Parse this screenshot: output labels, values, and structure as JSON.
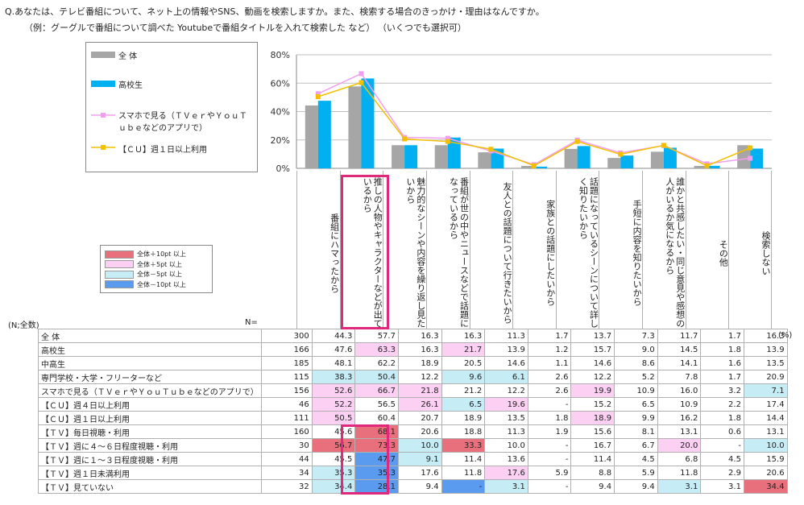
{
  "question_line1": "Q.あなたは、テレビ番組について、ネット上の情報やSNS、動画を検索しますか。また、検索する場合のきっかけ・理由はなんですか。",
  "question_line2": "（例：グーグルで番組について調べた Youtubeで番組タイトルを入れて検索した など） （いくつでも選択可）",
  "legend": {
    "all": "全 体",
    "hs": "高校生",
    "smartphone": "スマホで見る（ＴＶｅｒやＹｏｕＴｕｂｅなどのアプリで）",
    "cu": "【ＣＵ】週１日以上利用"
  },
  "highlight_legend": [
    {
      "label": "全体＋10pt 以上",
      "color": "#e8707c"
    },
    {
      "label": "全体＋5pt 以上",
      "color": "#fbd0f3"
    },
    {
      "label": "全体－5pt 以上",
      "color": "#c6ecf6"
    },
    {
      "label": "全体－10pt 以上",
      "color": "#5b9bef"
    }
  ],
  "sample_label": "(N;全数)",
  "n_header": "N=",
  "unit": "(%)",
  "colors": {
    "all": "#a6a6a6",
    "hs": "#00b0f0",
    "smartphone": "#f29ef0",
    "cu": "#f3c000",
    "frame": "#e0287c"
  },
  "chart_data": {
    "type": "bar",
    "ylim": [
      0,
      80
    ],
    "yticks": [
      "0%",
      "20%",
      "40%",
      "60%",
      "80%"
    ],
    "categories": [
      "番組にハマったから",
      "推しの人物やキャラクターなどが出ているから",
      "魅力的なシーンや内容を繰り返し見たいから",
      "番組が世の中やニュースなどで話題になっているから",
      "友人との話題について行きたいから",
      "家族との話題にしたいから",
      "話題になっているシーンについて詳しく知りたいから",
      "手短に内容を知りたいから",
      "誰かと共感したい・同じ意見や感想の人がいるか気になるから",
      "その他",
      "検索しない"
    ],
    "series": [
      {
        "name": "全 体",
        "type": "bar",
        "values": [
          44.3,
          57.7,
          16.3,
          16.3,
          11.3,
          1.7,
          13.7,
          7.3,
          11.7,
          1.7,
          16.3
        ]
      },
      {
        "name": "高校生",
        "type": "bar",
        "values": [
          47.6,
          63.3,
          16.3,
          21.7,
          13.9,
          1.2,
          15.7,
          9.0,
          14.5,
          1.8,
          13.9
        ]
      },
      {
        "name": "スマホで見る（ＴＶｅｒやＹｏｕＴｕｂｅなどのアプリで）",
        "type": "line",
        "values": [
          52.6,
          66.7,
          21.8,
          21.2,
          12.2,
          2.6,
          19.9,
          10.9,
          16.0,
          3.2,
          7.1
        ]
      },
      {
        "name": "【ＣＵ】週１日以上利用",
        "type": "line",
        "values": [
          50.5,
          60.4,
          20.7,
          18.9,
          13.5,
          1.8,
          18.9,
          9.9,
          16.2,
          1.8,
          14.4
        ]
      }
    ]
  },
  "table": {
    "rows": [
      {
        "label": "全 体",
        "n": "300",
        "values": [
          "44.3",
          "57.7",
          "16.3",
          "16.3",
          "11.3",
          "1.7",
          "13.7",
          "7.3",
          "11.7",
          "1.7",
          "16.3"
        ],
        "hl": [
          "",
          "",
          "",
          "",
          "",
          "",
          "",
          "",
          "",
          "",
          ""
        ]
      },
      {
        "label": "高校生",
        "n": "166",
        "values": [
          "47.6",
          "63.3",
          "16.3",
          "21.7",
          "13.9",
          "1.2",
          "15.7",
          "9.0",
          "14.5",
          "1.8",
          "13.9"
        ],
        "hl": [
          "",
          "p5",
          "",
          "p5",
          "",
          "",
          "",
          "",
          "",
          "",
          ""
        ]
      },
      {
        "label": "中高生",
        "n": "185",
        "values": [
          "48.1",
          "62.2",
          "18.9",
          "20.5",
          "14.6",
          "1.1",
          "14.6",
          "8.6",
          "14.1",
          "1.6",
          "13.5"
        ],
        "hl": [
          "",
          "",
          "",
          "",
          "",
          "",
          "",
          "",
          "",
          "",
          ""
        ]
      },
      {
        "label": "専門学校・大学・フリーターなど",
        "n": "115",
        "values": [
          "38.3",
          "50.4",
          "12.2",
          "9.6",
          "6.1",
          "2.6",
          "12.2",
          "5.2",
          "7.8",
          "1.7",
          "20.9"
        ],
        "hl": [
          "m5",
          "m5",
          "",
          "m5",
          "m5",
          "",
          "",
          "",
          "",
          "",
          ""
        ]
      },
      {
        "label": "スマホで見る（ＴＶｅｒやＹｏｕＴｕｂｅなどのアプリで）",
        "n": "156",
        "values": [
          "52.6",
          "66.7",
          "21.8",
          "21.2",
          "12.2",
          "2.6",
          "19.9",
          "10.9",
          "16.0",
          "3.2",
          "7.1"
        ],
        "hl": [
          "p5",
          "p5",
          "p5",
          "",
          "",
          "",
          "p5",
          "",
          "",
          "",
          "m5"
        ]
      },
      {
        "label": "【ＣＵ】週４日以上利用",
        "n": "46",
        "values": [
          "52.2",
          "56.5",
          "26.1",
          "6.5",
          "19.6",
          "-",
          "15.2",
          "6.5",
          "10.9",
          "2.2",
          "17.4"
        ],
        "hl": [
          "p5",
          "",
          "p5",
          "m5",
          "p5",
          "",
          "",
          "",
          "",
          "",
          ""
        ]
      },
      {
        "label": "【ＣＵ】週１日以上利用",
        "n": "111",
        "values": [
          "50.5",
          "60.4",
          "20.7",
          "18.9",
          "13.5",
          "1.8",
          "18.9",
          "9.9",
          "16.2",
          "1.8",
          "14.4"
        ],
        "hl": [
          "p5",
          "",
          "",
          "",
          "",
          "",
          "p5",
          "",
          "",
          "",
          ""
        ]
      },
      {
        "label": "【ＴＶ】毎日視聴・利用",
        "n": "160",
        "values": [
          "45.6",
          "68.1",
          "20.6",
          "18.8",
          "11.3",
          "1.9",
          "15.6",
          "8.1",
          "13.1",
          "0.6",
          "13.1"
        ],
        "hl": [
          "",
          "p10",
          "",
          "",
          "",
          "",
          "",
          "",
          "",
          "",
          ""
        ]
      },
      {
        "label": "【ＴＶ】週に４～６日程度視聴・利用",
        "n": "30",
        "values": [
          "56.7",
          "73.3",
          "10.0",
          "33.3",
          "10.0",
          "-",
          "16.7",
          "6.7",
          "20.0",
          "-",
          "10.0"
        ],
        "hl": [
          "p10",
          "p10",
          "m5",
          "p10",
          "",
          "",
          "",
          "",
          "p5",
          "",
          "m5"
        ]
      },
      {
        "label": "【ＴＶ】週に１～３日程度視聴・利用",
        "n": "44",
        "values": [
          "45.5",
          "47.7",
          "9.1",
          "11.4",
          "13.6",
          "-",
          "11.4",
          "4.5",
          "6.8",
          "4.5",
          "15.9"
        ],
        "hl": [
          "",
          "m10",
          "m5",
          "",
          "",
          "",
          "",
          "",
          "",
          "",
          ""
        ]
      },
      {
        "label": "【ＴＶ】週１日未満利用",
        "n": "34",
        "values": [
          "35.3",
          "35.3",
          "17.6",
          "11.8",
          "17.6",
          "5.9",
          "8.8",
          "5.9",
          "11.8",
          "2.9",
          "20.6"
        ],
        "hl": [
          "m5",
          "m10",
          "",
          "",
          "p5",
          "",
          "",
          "",
          "",
          "",
          ""
        ]
      },
      {
        "label": "【ＴＶ】見ていない",
        "n": "32",
        "values": [
          "34.4",
          "28.1",
          "9.4",
          "-",
          "3.1",
          "-",
          "9.4",
          "9.4",
          "3.1",
          "3.1",
          "34.4"
        ],
        "hl": [
          "m5",
          "m10",
          "",
          "m10",
          "m5",
          "",
          "",
          "",
          "m5",
          "",
          "p10"
        ]
      }
    ]
  }
}
